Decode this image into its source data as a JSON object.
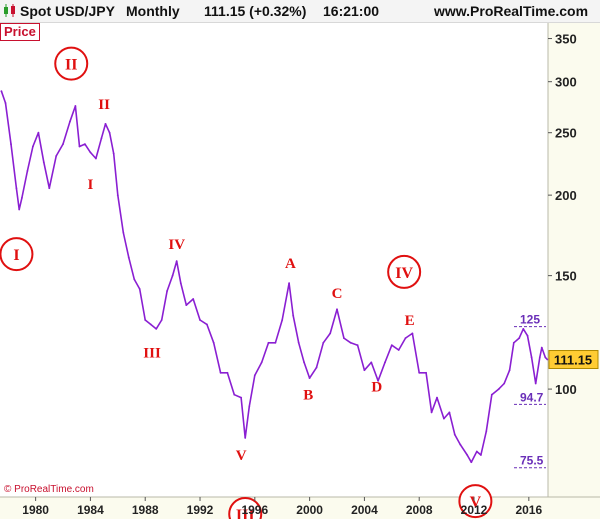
{
  "header": {
    "symbol": "Spot USD/JPY",
    "period": "Monthly",
    "last": "111.15 (+0.32%)",
    "time": "16:21:00",
    "site": "www.ProRealTime.com"
  },
  "panel_label": "Price",
  "copyright": "© ProRealTime.com",
  "colors": {
    "price": "#8a1fd2",
    "wave": "#e01010",
    "tag": "#ffcc33",
    "level": "#6a2fb8"
  },
  "chart_data": {
    "type": "line",
    "y_scale": "log",
    "ylim": [
      68,
      370
    ],
    "xlim": [
      1977.4,
      2017.4
    ],
    "x_ticks": [
      "1980",
      "1984",
      "1988",
      "1992",
      "1996",
      "2000",
      "2004",
      "2008",
      "2012",
      "2016"
    ],
    "y_ticks": [
      "350",
      "300",
      "250",
      "200",
      "150",
      "100"
    ],
    "last_value": "111.15",
    "series": [
      {
        "values": [
          [
            1977.5,
            290
          ],
          [
            1977.8,
            278
          ],
          [
            1978.2,
            240
          ],
          [
            1978.6,
            205
          ],
          [
            1978.8,
            190
          ],
          [
            1979.0,
            198
          ],
          [
            1979.4,
            218
          ],
          [
            1979.8,
            238
          ],
          [
            1980.2,
            250
          ],
          [
            1980.6,
            225
          ],
          [
            1981.0,
            205
          ],
          [
            1981.5,
            230
          ],
          [
            1982.0,
            240
          ],
          [
            1982.5,
            260
          ],
          [
            1982.9,
            275
          ],
          [
            1983.2,
            238
          ],
          [
            1983.6,
            240
          ],
          [
            1984.0,
            233
          ],
          [
            1984.4,
            228
          ],
          [
            1984.8,
            245
          ],
          [
            1985.1,
            258
          ],
          [
            1985.4,
            250
          ],
          [
            1985.7,
            232
          ],
          [
            1986.0,
            200
          ],
          [
            1986.4,
            175
          ],
          [
            1986.8,
            160
          ],
          [
            1987.2,
            148
          ],
          [
            1987.6,
            143
          ],
          [
            1988.0,
            128
          ],
          [
            1988.4,
            126
          ],
          [
            1988.8,
            124
          ],
          [
            1989.2,
            128
          ],
          [
            1989.6,
            142
          ],
          [
            1990.0,
            150
          ],
          [
            1990.3,
            158
          ],
          [
            1990.6,
            146
          ],
          [
            1991.0,
            135
          ],
          [
            1991.5,
            138
          ],
          [
            1992.0,
            128
          ],
          [
            1992.5,
            126
          ],
          [
            1993.0,
            118
          ],
          [
            1993.5,
            106
          ],
          [
            1994.0,
            106
          ],
          [
            1994.5,
            98
          ],
          [
            1995.0,
            97
          ],
          [
            1995.3,
            84
          ],
          [
            1995.6,
            94
          ],
          [
            1996.0,
            105
          ],
          [
            1996.5,
            110
          ],
          [
            1997.0,
            118
          ],
          [
            1997.5,
            118
          ],
          [
            1998.0,
            128
          ],
          [
            1998.5,
            146
          ],
          [
            1998.8,
            130
          ],
          [
            1999.2,
            118
          ],
          [
            1999.6,
            110
          ],
          [
            2000.0,
            104
          ],
          [
            2000.5,
            108
          ],
          [
            2001.0,
            118
          ],
          [
            2001.5,
            122
          ],
          [
            2002.0,
            133
          ],
          [
            2002.5,
            120
          ],
          [
            2003.0,
            118
          ],
          [
            2003.5,
            117
          ],
          [
            2004.0,
            107
          ],
          [
            2004.5,
            110
          ],
          [
            2005.0,
            103
          ],
          [
            2005.5,
            110
          ],
          [
            2006.0,
            117
          ],
          [
            2006.5,
            115
          ],
          [
            2007.0,
            120
          ],
          [
            2007.5,
            122
          ],
          [
            2008.0,
            106
          ],
          [
            2008.5,
            106
          ],
          [
            2008.9,
            92
          ],
          [
            2009.3,
            97
          ],
          [
            2009.8,
            90
          ],
          [
            2010.2,
            92
          ],
          [
            2010.6,
            85
          ],
          [
            2011.0,
            82
          ],
          [
            2011.5,
            79
          ],
          [
            2011.8,
            77
          ],
          [
            2012.2,
            80
          ],
          [
            2012.5,
            79
          ],
          [
            2012.9,
            86
          ],
          [
            2013.3,
            98
          ],
          [
            2013.8,
            100
          ],
          [
            2014.2,
            102
          ],
          [
            2014.6,
            107
          ],
          [
            2014.9,
            118
          ],
          [
            2015.3,
            120
          ],
          [
            2015.6,
            124
          ],
          [
            2015.9,
            121
          ],
          [
            2016.2,
            112
          ],
          [
            2016.5,
            102
          ],
          [
            2016.8,
            112
          ],
          [
            2016.95,
            116
          ],
          [
            2017.2,
            112
          ],
          [
            2017.35,
            111.15
          ]
        ]
      }
    ],
    "levels": [
      {
        "value": 125,
        "label": "125"
      },
      {
        "value": 94.7,
        "label": "94.7"
      },
      {
        "value": 75.5,
        "label": "75.5"
      }
    ],
    "annotations": [
      {
        "label": "II",
        "x": 1982.6,
        "y": 320,
        "circled": true
      },
      {
        "label": "II",
        "x": 1985.0,
        "y": 277,
        "circled": false
      },
      {
        "label": "I",
        "x": 1984.0,
        "y": 208,
        "circled": false
      },
      {
        "label": "I",
        "x": 1978.6,
        "y": 162,
        "circled": true
      },
      {
        "label": "IV",
        "x": 1990.3,
        "y": 168,
        "circled": false
      },
      {
        "label": "III",
        "x": 1988.5,
        "y": 114,
        "circled": false
      },
      {
        "label": "V",
        "x": 1995.0,
        "y": 79,
        "circled": false
      },
      {
        "label": "III",
        "x": 1995.3,
        "y": 64,
        "circled": true
      },
      {
        "label": "A",
        "x": 1998.6,
        "y": 157,
        "circled": false
      },
      {
        "label": "B",
        "x": 1999.9,
        "y": 98,
        "circled": false
      },
      {
        "label": "C",
        "x": 2002.0,
        "y": 141,
        "circled": false
      },
      {
        "label": "D",
        "x": 2004.9,
        "y": 101,
        "circled": false
      },
      {
        "label": "IV",
        "x": 2006.9,
        "y": 152,
        "circled": true
      },
      {
        "label": "E",
        "x": 2007.3,
        "y": 128,
        "circled": false
      },
      {
        "label": "V",
        "x": 2012.1,
        "y": 67,
        "circled": true
      }
    ]
  }
}
